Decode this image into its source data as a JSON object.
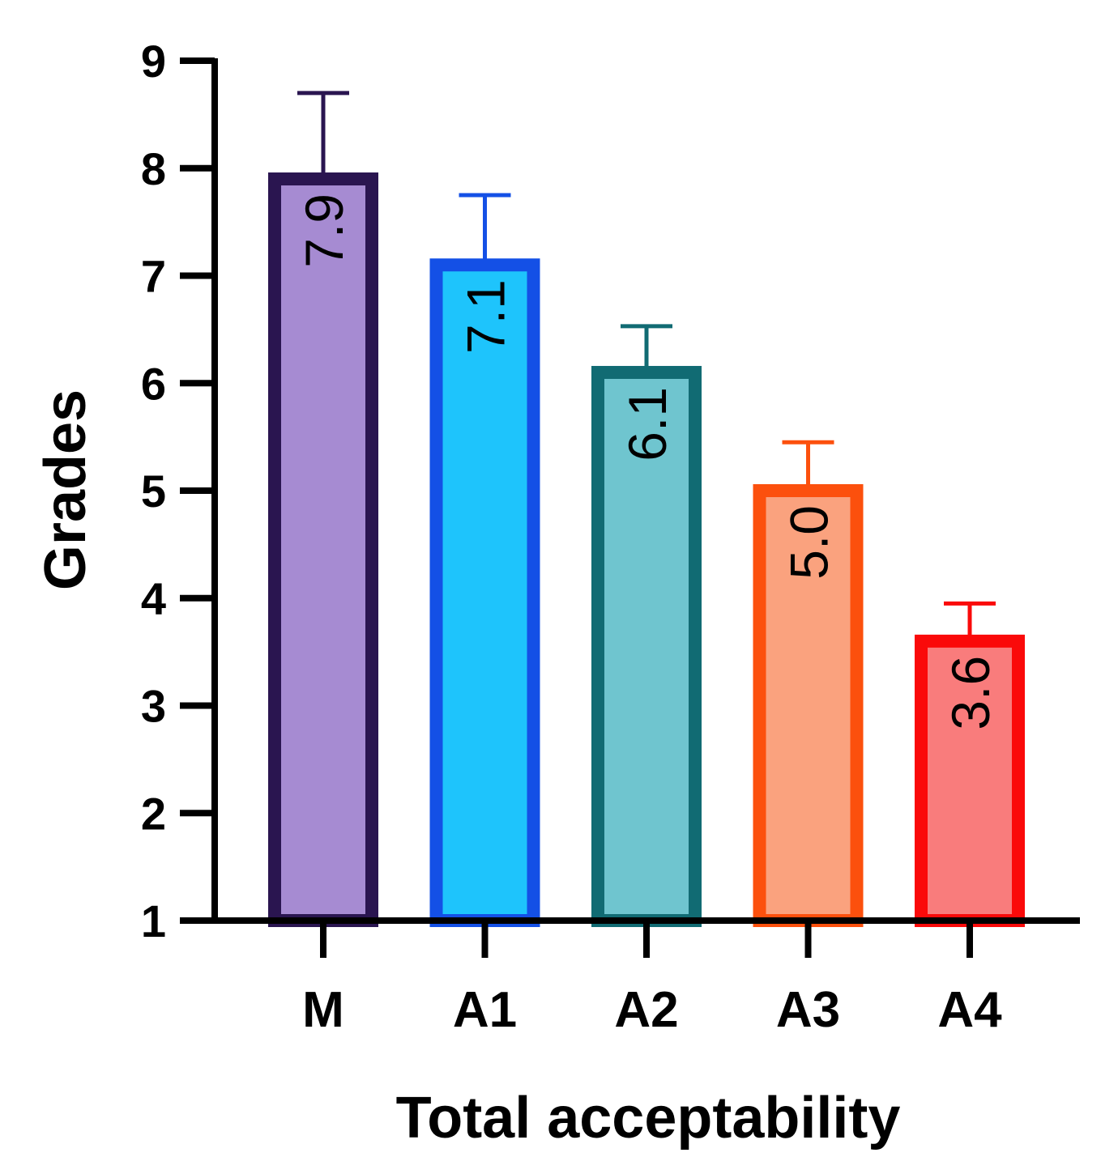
{
  "chart_data": {
    "type": "bar",
    "xlabel": "Total acceptability",
    "ylabel": "Grades",
    "ylim": [
      1,
      9
    ],
    "yticks": [
      "1",
      "2",
      "3",
      "4",
      "5",
      "6",
      "7",
      "8",
      "9"
    ],
    "categories": [
      "M",
      "A1",
      "A2",
      "A3",
      "A4"
    ],
    "values": [
      7.9,
      7.1,
      6.1,
      5.0,
      3.6
    ],
    "data_labels": [
      "7.9",
      "7.1",
      "6.1",
      "5.0",
      "3.6"
    ],
    "error_upper": [
      8.7,
      7.75,
      6.53,
      5.45,
      3.95
    ],
    "fill_colors": [
      "#a68bd2",
      "#1ec4fc",
      "#6fc5cf",
      "#faa27e",
      "#f97c7c"
    ],
    "stroke_colors": [
      "#2a1550",
      "#1450e6",
      "#116b73",
      "#fc500d",
      "#fa0a0a"
    ],
    "grid": false,
    "legend": false
  }
}
